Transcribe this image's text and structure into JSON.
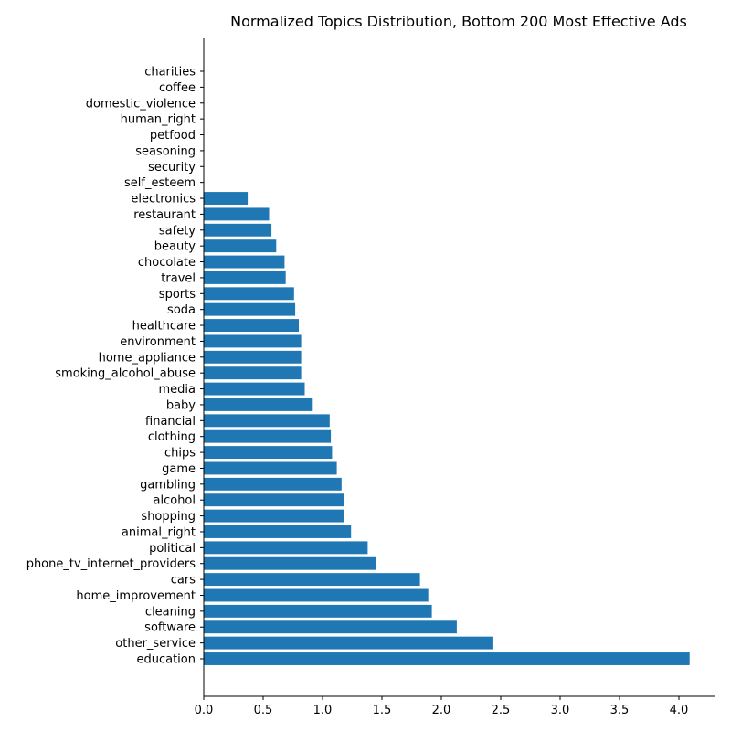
{
  "chart_data": {
    "type": "bar",
    "orientation": "horizontal",
    "title": "Normalized Topics Distribution, Bottom 200 Most Effective Ads",
    "xlabel": "",
    "ylabel": "",
    "xlim": [
      0,
      4.3
    ],
    "xticks": [
      "0.0",
      "0.5",
      "1.0",
      "1.5",
      "2.0",
      "2.5",
      "3.0",
      "3.5",
      "4.0"
    ],
    "grid": false,
    "bar_color": "#1f77b4",
    "categories": [
      "charities",
      "coffee",
      "domestic_violence",
      "human_right",
      "petfood",
      "seasoning",
      "security",
      "self_esteem",
      "electronics",
      "restaurant",
      "safety",
      "beauty",
      "chocolate",
      "travel",
      "sports",
      "soda",
      "healthcare",
      "environment",
      "home_appliance",
      "smoking_alcohol_abuse",
      "media",
      "baby",
      "financial",
      "clothing",
      "chips",
      "game",
      "gambling",
      "alcohol",
      "shopping",
      "animal_right",
      "political",
      "phone_tv_internet_providers",
      "cars",
      "home_improvement",
      "cleaning",
      "software",
      "other_service",
      "education"
    ],
    "values": [
      0,
      0,
      0,
      0,
      0,
      0,
      0,
      0,
      0.37,
      0.55,
      0.57,
      0.61,
      0.68,
      0.69,
      0.76,
      0.77,
      0.8,
      0.82,
      0.82,
      0.82,
      0.85,
      0.91,
      1.06,
      1.07,
      1.08,
      1.12,
      1.16,
      1.18,
      1.18,
      1.24,
      1.38,
      1.45,
      1.82,
      1.89,
      1.92,
      2.13,
      2.43,
      4.09
    ]
  }
}
